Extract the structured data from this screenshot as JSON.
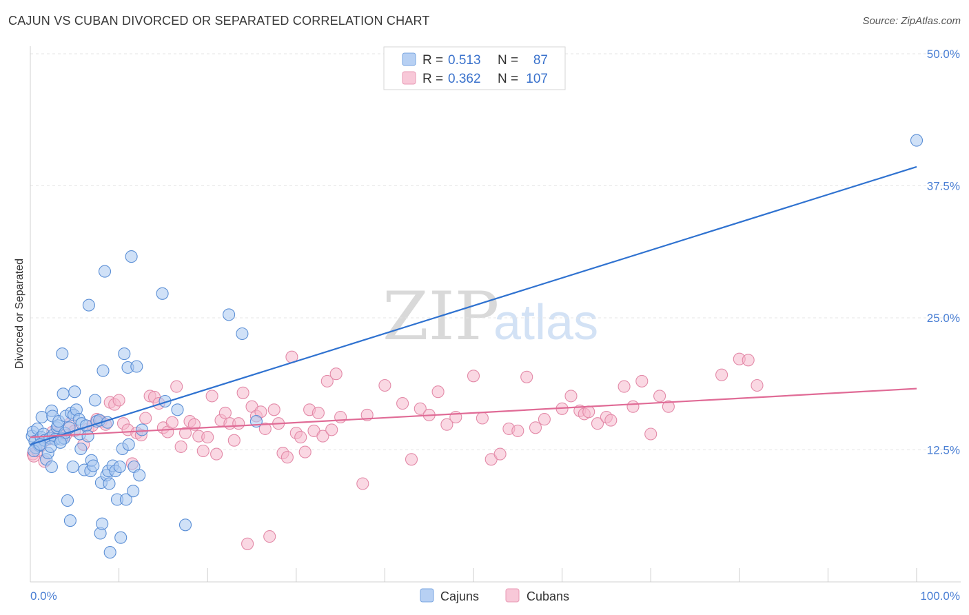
{
  "header": {
    "title": "CAJUN VS CUBAN DIVORCED OR SEPARATED CORRELATION CHART",
    "source": "Source: ZipAtlas.com"
  },
  "watermark": {
    "zip": "ZIP",
    "atlas": "atlas"
  },
  "legend_top": [
    {
      "r_label": "R =",
      "r_value": "0.513",
      "n_label": "N =",
      "n_value": "87"
    },
    {
      "r_label": "R =",
      "r_value": "0.362",
      "n_label": "N =",
      "n_value": "107"
    }
  ],
  "legend_bottom": [
    "Cajuns",
    "Cubans"
  ],
  "colors": {
    "cajun_fill": "#a9c8f0",
    "cajun_stroke": "#5b8fd6",
    "cajun_line": "#2f72d0",
    "cuban_fill": "#f6b8cc",
    "cuban_stroke": "#e38aa8",
    "cuban_line": "#e06b96",
    "tick_text": "#4a7fd4"
  },
  "chart_data": {
    "type": "scatter",
    "title": "CAJUN VS CUBAN DIVORCED OR SEPARATED CORRELATION CHART",
    "xlabel": "",
    "ylabel": "Divorced or Separated",
    "xlim": [
      0,
      100
    ],
    "ylim": [
      0,
      52
    ],
    "x_tick_labels": [
      "0.0%",
      "100.0%"
    ],
    "y_ticks": [
      12.5,
      25.0,
      37.5,
      50.0
    ],
    "y_tick_labels": [
      "12.5%",
      "25.0%",
      "37.5%",
      "50.0%"
    ],
    "grid": "horizontal dashed",
    "legend": "top-center",
    "series": [
      {
        "name": "Cajuns",
        "trendline": {
          "x": [
            0,
            100
          ],
          "y": [
            13.0,
            39.3
          ]
        },
        "points": [
          [
            0.2,
            13.8
          ],
          [
            0.3,
            14.2
          ],
          [
            0.5,
            13.3
          ],
          [
            0.6,
            12.7
          ],
          [
            0.8,
            14.5
          ],
          [
            1.0,
            12.9
          ],
          [
            1.2,
            13.7
          ],
          [
            1.3,
            15.6
          ],
          [
            1.5,
            14.0
          ],
          [
            1.6,
            13.4
          ],
          [
            1.8,
            11.6
          ],
          [
            2.0,
            12.2
          ],
          [
            2.2,
            13.6
          ],
          [
            2.4,
            10.9
          ],
          [
            2.4,
            16.2
          ],
          [
            2.5,
            15.7
          ],
          [
            2.6,
            13.9
          ],
          [
            2.8,
            13.5
          ],
          [
            3.0,
            14.6
          ],
          [
            3.1,
            14.8
          ],
          [
            3.2,
            15.2
          ],
          [
            3.5,
            13.5
          ],
          [
            3.6,
            21.6
          ],
          [
            3.7,
            17.8
          ],
          [
            3.8,
            13.6
          ],
          [
            3.9,
            14.1
          ],
          [
            4.0,
            15.7
          ],
          [
            4.2,
            7.7
          ],
          [
            4.4,
            14.6
          ],
          [
            4.5,
            5.8
          ],
          [
            4.6,
            16.0
          ],
          [
            4.8,
            10.9
          ],
          [
            4.9,
            15.8
          ],
          [
            5.0,
            18.0
          ],
          [
            5.2,
            16.3
          ],
          [
            5.5,
            15.4
          ],
          [
            5.6,
            14.0
          ],
          [
            5.7,
            12.6
          ],
          [
            5.8,
            15.0
          ],
          [
            6.1,
            10.6
          ],
          [
            6.3,
            14.8
          ],
          [
            6.6,
            26.2
          ],
          [
            6.8,
            10.5
          ],
          [
            6.9,
            11.5
          ],
          [
            7.1,
            11.0
          ],
          [
            7.3,
            17.2
          ],
          [
            7.5,
            15.2
          ],
          [
            7.8,
            15.3
          ],
          [
            7.9,
            4.6
          ],
          [
            8.0,
            9.4
          ],
          [
            8.1,
            5.5
          ],
          [
            8.2,
            20.0
          ],
          [
            8.4,
            29.4
          ],
          [
            8.6,
            10.1
          ],
          [
            8.7,
            15.1
          ],
          [
            8.8,
            10.5
          ],
          [
            8.9,
            9.3
          ],
          [
            9.0,
            2.8
          ],
          [
            9.3,
            11.0
          ],
          [
            9.6,
            10.5
          ],
          [
            9.8,
            7.8
          ],
          [
            10.1,
            10.9
          ],
          [
            10.2,
            4.2
          ],
          [
            10.4,
            12.6
          ],
          [
            10.6,
            21.6
          ],
          [
            10.8,
            7.8
          ],
          [
            11.0,
            20.3
          ],
          [
            11.1,
            13.0
          ],
          [
            11.4,
            30.8
          ],
          [
            11.6,
            8.6
          ],
          [
            11.7,
            10.9
          ],
          [
            12.0,
            20.4
          ],
          [
            12.3,
            10.1
          ],
          [
            12.6,
            14.4
          ],
          [
            14.9,
            27.3
          ],
          [
            15.2,
            17.1
          ],
          [
            16.6,
            16.3
          ],
          [
            17.5,
            5.4
          ],
          [
            22.4,
            25.3
          ],
          [
            23.9,
            23.5
          ],
          [
            25.5,
            15.2
          ],
          [
            100.0,
            41.8
          ],
          [
            0.4,
            12.4
          ],
          [
            1.1,
            13.0
          ],
          [
            2.3,
            12.8
          ],
          [
            3.4,
            13.2
          ],
          [
            6.5,
            13.8
          ]
        ]
      },
      {
        "name": "Cubans",
        "trendline": {
          "x": [
            0,
            100
          ],
          "y": [
            13.7,
            18.3
          ]
        },
        "points": [
          [
            0.3,
            12.1
          ],
          [
            0.4,
            11.9
          ],
          [
            0.8,
            12.4
          ],
          [
            1.2,
            12.9
          ],
          [
            1.6,
            11.4
          ],
          [
            2.0,
            13.5
          ],
          [
            2.5,
            14.2
          ],
          [
            3.2,
            14.1
          ],
          [
            4.0,
            13.9
          ],
          [
            4.5,
            15.0
          ],
          [
            5.0,
            14.3
          ],
          [
            6.0,
            13.0
          ],
          [
            6.5,
            14.5
          ],
          [
            7.0,
            14.8
          ],
          [
            7.5,
            15.4
          ],
          [
            8.0,
            15.2
          ],
          [
            8.5,
            14.9
          ],
          [
            9.0,
            17.0
          ],
          [
            9.5,
            16.8
          ],
          [
            10.0,
            17.2
          ],
          [
            10.5,
            15.0
          ],
          [
            11.0,
            14.4
          ],
          [
            11.5,
            11.2
          ],
          [
            12.0,
            14.1
          ],
          [
            12.5,
            13.9
          ],
          [
            13.0,
            15.5
          ],
          [
            13.5,
            17.6
          ],
          [
            14.0,
            17.5
          ],
          [
            14.5,
            16.9
          ],
          [
            15.0,
            14.6
          ],
          [
            15.5,
            14.2
          ],
          [
            16.0,
            15.1
          ],
          [
            16.5,
            18.5
          ],
          [
            17.0,
            12.8
          ],
          [
            17.5,
            14.1
          ],
          [
            18.0,
            15.2
          ],
          [
            18.5,
            14.9
          ],
          [
            19.0,
            13.8
          ],
          [
            19.5,
            12.4
          ],
          [
            20.0,
            13.7
          ],
          [
            20.5,
            17.6
          ],
          [
            21.0,
            12.1
          ],
          [
            21.5,
            15.3
          ],
          [
            22.0,
            16.0
          ],
          [
            22.5,
            15.0
          ],
          [
            23.0,
            13.4
          ],
          [
            23.5,
            15.0
          ],
          [
            24.0,
            17.9
          ],
          [
            24.5,
            3.6
          ],
          [
            25.0,
            16.6
          ],
          [
            25.5,
            15.7
          ],
          [
            26.0,
            16.1
          ],
          [
            26.5,
            14.5
          ],
          [
            27.0,
            4.3
          ],
          [
            27.5,
            16.3
          ],
          [
            28.0,
            15.0
          ],
          [
            28.5,
            12.2
          ],
          [
            29.0,
            11.8
          ],
          [
            29.5,
            21.3
          ],
          [
            30.0,
            14.1
          ],
          [
            30.5,
            13.7
          ],
          [
            31.0,
            12.3
          ],
          [
            31.5,
            16.3
          ],
          [
            32.0,
            14.3
          ],
          [
            32.5,
            16.0
          ],
          [
            33.0,
            13.8
          ],
          [
            33.5,
            19.0
          ],
          [
            34.0,
            14.4
          ],
          [
            34.5,
            19.7
          ],
          [
            35.0,
            15.6
          ],
          [
            37.5,
            9.3
          ],
          [
            38.0,
            15.8
          ],
          [
            40.0,
            18.6
          ],
          [
            42.0,
            16.9
          ],
          [
            43.0,
            11.6
          ],
          [
            44.0,
            16.4
          ],
          [
            45.0,
            15.8
          ],
          [
            46.0,
            18.0
          ],
          [
            47.0,
            14.9
          ],
          [
            48.0,
            15.6
          ],
          [
            50.0,
            19.5
          ],
          [
            51.0,
            15.5
          ],
          [
            52.0,
            11.6
          ],
          [
            53.0,
            12.1
          ],
          [
            54.0,
            14.5
          ],
          [
            55.0,
            14.3
          ],
          [
            56.0,
            19.4
          ],
          [
            57.0,
            14.6
          ],
          [
            58.0,
            15.4
          ],
          [
            60.0,
            16.4
          ],
          [
            61.0,
            17.6
          ],
          [
            62.0,
            16.2
          ],
          [
            62.5,
            15.9
          ],
          [
            63.0,
            16.1
          ],
          [
            64.0,
            15.0
          ],
          [
            65.0,
            15.6
          ],
          [
            67.0,
            18.5
          ],
          [
            68.0,
            16.6
          ],
          [
            69.0,
            19.0
          ],
          [
            70.0,
            14.0
          ],
          [
            71.0,
            17.6
          ],
          [
            72.0,
            16.6
          ],
          [
            78.0,
            19.6
          ],
          [
            80.0,
            21.1
          ],
          [
            81.0,
            21.0
          ],
          [
            82.0,
            18.6
          ],
          [
            65.5,
            15.3
          ]
        ]
      }
    ]
  }
}
